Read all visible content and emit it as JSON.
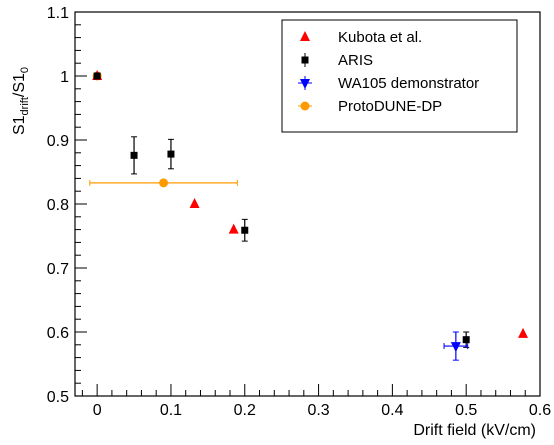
{
  "chart_data": {
    "type": "scatter",
    "xlabel": "Drift field (kV/cm)",
    "ylabel": {
      "base": "S1",
      "sub_num": "drift",
      "slash": "/S1",
      "sub_den": "0"
    },
    "xlim": [
      -0.03,
      0.6
    ],
    "ylim": [
      0.5,
      1.1
    ],
    "x_ticks": [
      "0",
      "0.1",
      "0.2",
      "0.3",
      "0.4",
      "0.5",
      "0.6"
    ],
    "x_tick_values": [
      0,
      0.1,
      0.2,
      0.3,
      0.4,
      0.5,
      0.6
    ],
    "y_ticks": [
      "0.5",
      "0.6",
      "0.7",
      "0.8",
      "0.9",
      "1",
      "1.1"
    ],
    "y_tick_values": [
      0.5,
      0.6,
      0.7,
      0.8,
      0.9,
      1.0,
      1.1
    ],
    "grid": false,
    "legend_position": "top-right",
    "series": [
      {
        "name": "Kubota et al.",
        "marker": "triangle-up",
        "color": "#ff0000",
        "points": [
          {
            "x": 0,
            "y": 1.0
          },
          {
            "x": 0.132,
            "y": 0.8
          },
          {
            "x": 0.185,
            "y": 0.76
          },
          {
            "x": 0.577,
            "y": 0.597
          }
        ]
      },
      {
        "name": "ARIS",
        "marker": "square",
        "color": "#000000",
        "points": [
          {
            "x": 0,
            "y": 1.0,
            "yerr": 0
          },
          {
            "x": 0.05,
            "y": 0.876,
            "yerr": 0.029
          },
          {
            "x": 0.1,
            "y": 0.878,
            "yerr": 0.023
          },
          {
            "x": 0.2,
            "y": 0.759,
            "yerr": 0.017
          },
          {
            "x": 0.5,
            "y": 0.588,
            "yerr": 0.012
          }
        ]
      },
      {
        "name": "WA105 demonstrator",
        "marker": "triangle-down",
        "color": "#0000ff",
        "points": [
          {
            "x": 0.486,
            "y": 0.578,
            "xerr": 0.016,
            "yerr": 0.022
          }
        ]
      },
      {
        "name": "ProtoDUNE-DP",
        "marker": "circle",
        "color": "#ff9900",
        "points": [
          {
            "x": 0,
            "y": 1.0
          },
          {
            "x": 0.09,
            "y": 0.833,
            "xerr": 0.1
          }
        ]
      }
    ]
  }
}
